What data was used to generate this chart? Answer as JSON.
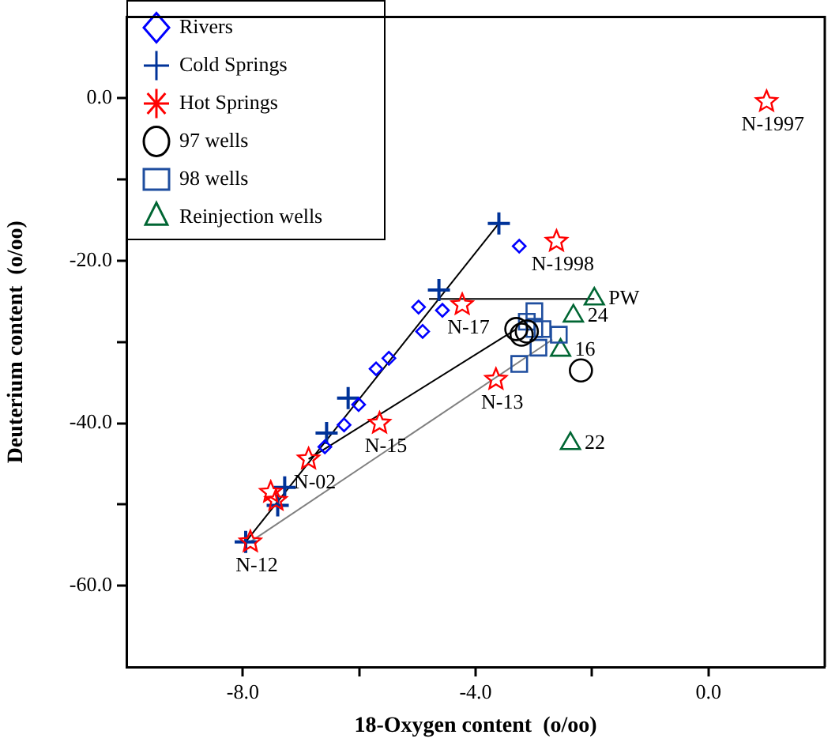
{
  "chart_data": {
    "type": "scatter",
    "xlabel": "18-Oxygen content  (o/oo)",
    "ylabel": "Deuterium content  (o/oo)",
    "xlim": [
      -10,
      2
    ],
    "ylim": [
      -70,
      10
    ],
    "xticks": [
      {
        "value": -8,
        "label": "-8.0"
      },
      {
        "value": -6,
        "label": null
      },
      {
        "value": -4,
        "label": "-4.0"
      },
      {
        "value": -2,
        "label": null
      },
      {
        "value": 0,
        "label": "0.0"
      }
    ],
    "yticks": [
      {
        "value": -60,
        "label": "-60.0"
      },
      {
        "value": -50,
        "label": null
      },
      {
        "value": -40,
        "label": "-40.0"
      },
      {
        "value": -30,
        "label": null
      },
      {
        "value": -20,
        "label": "-20.0"
      },
      {
        "value": -10,
        "label": null
      },
      {
        "value": 0,
        "label": "0.0"
      }
    ],
    "grid": false,
    "legend": "top left",
    "series": [
      {
        "name": "Rivers",
        "color": "#0000ff",
        "marker": "diamond",
        "x": [
          -4.98,
          -4.57,
          -4.91,
          -5.49,
          -5.71,
          -6.01,
          -6.26,
          -6.59,
          -3.25
        ],
        "values": [
          -25.7,
          -26.1,
          -28.7,
          -32,
          -33.3,
          -37.7,
          -40.2,
          -42.9,
          -18.2
        ]
      },
      {
        "name": "Cold Springs",
        "color": "#003399",
        "marker": "cross",
        "x": [
          -3.6,
          -4.63,
          -6.19,
          -6.56,
          -7.28,
          -7.4,
          -7.95
        ],
        "values": [
          -15.4,
          -23.6,
          -36.9,
          -41.2,
          -47.9,
          -50.1,
          -54.6
        ]
      },
      {
        "name": "Hot Springs",
        "color": "#ff0000",
        "marker": "star",
        "x": [
          1.0,
          -2.61,
          -4.23,
          -3.65,
          -5.65,
          -6.87,
          -7.52,
          -7.43,
          -7.87
        ],
        "values": [
          -0.4,
          -17.6,
          -25.4,
          -34.6,
          -40,
          -44.4,
          -48.5,
          -49.5,
          -54.6
        ]
      },
      {
        "name": "97 wells",
        "color": "#000000",
        "marker": "circle",
        "x": [
          -3.3,
          -3.12,
          -3.21,
          -2.19
        ],
        "values": [
          -28.4,
          -28.7,
          -29.1,
          -33.5
        ]
      },
      {
        "name": "98 wells",
        "color": "#1f4e9f",
        "marker": "square",
        "x": [
          -2.99,
          -2.99,
          -2.85,
          -2.57,
          -2.92,
          -3.25,
          -3.12
        ],
        "values": [
          -26.2,
          -28.4,
          -28.4,
          -29.1,
          -30.7,
          -32.7,
          -27.5
        ]
      },
      {
        "name": "Reinjection wells",
        "color": "#006633",
        "marker": "triangle",
        "x": [
          -1.96,
          -2.32,
          -2.54,
          -2.37
        ],
        "values": [
          -24.7,
          -26.8,
          -31,
          -42.5
        ]
      },
      {
        "type": "line",
        "color": "#000000",
        "marker": "none",
        "x": [
          -7.95,
          -3.6
        ],
        "values": [
          -54.6,
          -15.4
        ]
      },
      {
        "type": "line",
        "color": "#000000",
        "marker": "none",
        "x": [
          -4.8,
          -1.96
        ],
        "values": [
          -24.7,
          -24.7
        ]
      },
      {
        "type": "line",
        "color": "#000000",
        "marker": "none",
        "x": [
          -6.87,
          -3.3
        ],
        "values": [
          -44.4,
          -28.4
        ]
      },
      {
        "type": "line",
        "color": "#808080",
        "marker": "none",
        "x": [
          -7.87,
          -2.68
        ],
        "values": [
          -54.6,
          -29.7
        ]
      }
    ],
    "annotations": [
      {
        "text": "N-1997",
        "x": 1.0,
        "y": -0.4
      },
      {
        "text": "N-1998",
        "x": -2.61,
        "y": -17.6
      },
      {
        "text": "N-17",
        "x": -4.23,
        "y": -25.4
      },
      {
        "text": "N-13",
        "x": -3.65,
        "y": -34.6
      },
      {
        "text": "N-15",
        "x": -5.65,
        "y": -40
      },
      {
        "text": "N-02",
        "x": -6.87,
        "y": -44.4
      },
      {
        "text": "N-12",
        "x": -7.87,
        "y": -54.6
      },
      {
        "text": "PW",
        "x": -1.96,
        "y": -24.7
      },
      {
        "text": "24",
        "x": -2.32,
        "y": -26.8
      },
      {
        "text": "16",
        "x": -2.54,
        "y": -31
      },
      {
        "text": "22",
        "x": -2.37,
        "y": -42.5
      }
    ]
  }
}
